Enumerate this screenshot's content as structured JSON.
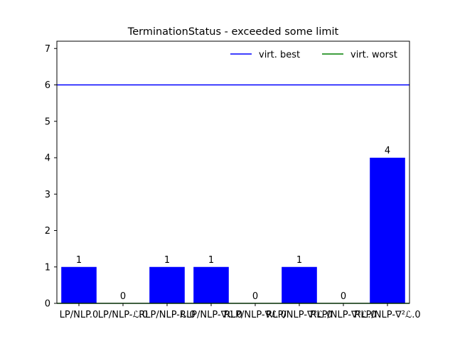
{
  "chart_data": {
    "type": "bar",
    "title": "TerminationStatus - exceeded some limit",
    "xlabel": "",
    "ylabel": "",
    "categories": [
      "LP/NLP.0",
      "LP/NLP-ℒ.0",
      "RLP/NLP-ℒ.0",
      "RLP/NLP-∇ℒ.0",
      "RLP/NLP-∇ℒ.0",
      "RLP/NLP-∇²ℒ.0",
      "RLP/NLP-∇²ℒ.0",
      "RLP/NLP-∇²ℒ.0"
    ],
    "values": [
      1,
      0,
      1,
      1,
      0,
      1,
      0,
      4
    ],
    "value_labels": [
      "1",
      "0",
      "1",
      "1",
      "0",
      "1",
      "0",
      "4"
    ],
    "bar_color": "#0000ff",
    "zero_line_color": "#008000",
    "ylim": [
      0,
      7.2
    ],
    "yticks": [
      0,
      1,
      2,
      3,
      4,
      5,
      6,
      7
    ],
    "grid": false,
    "reference_lines": [
      {
        "name": "virt. best",
        "value": 6,
        "color": "#0000ff"
      },
      {
        "name": "virt. worst",
        "value": 0,
        "color": "#008000"
      }
    ],
    "legend": {
      "placement": "top-right",
      "entries": [
        {
          "label": "virt. best",
          "color": "#0000ff"
        },
        {
          "label": "virt. worst",
          "color": "#008000"
        }
      ]
    }
  }
}
